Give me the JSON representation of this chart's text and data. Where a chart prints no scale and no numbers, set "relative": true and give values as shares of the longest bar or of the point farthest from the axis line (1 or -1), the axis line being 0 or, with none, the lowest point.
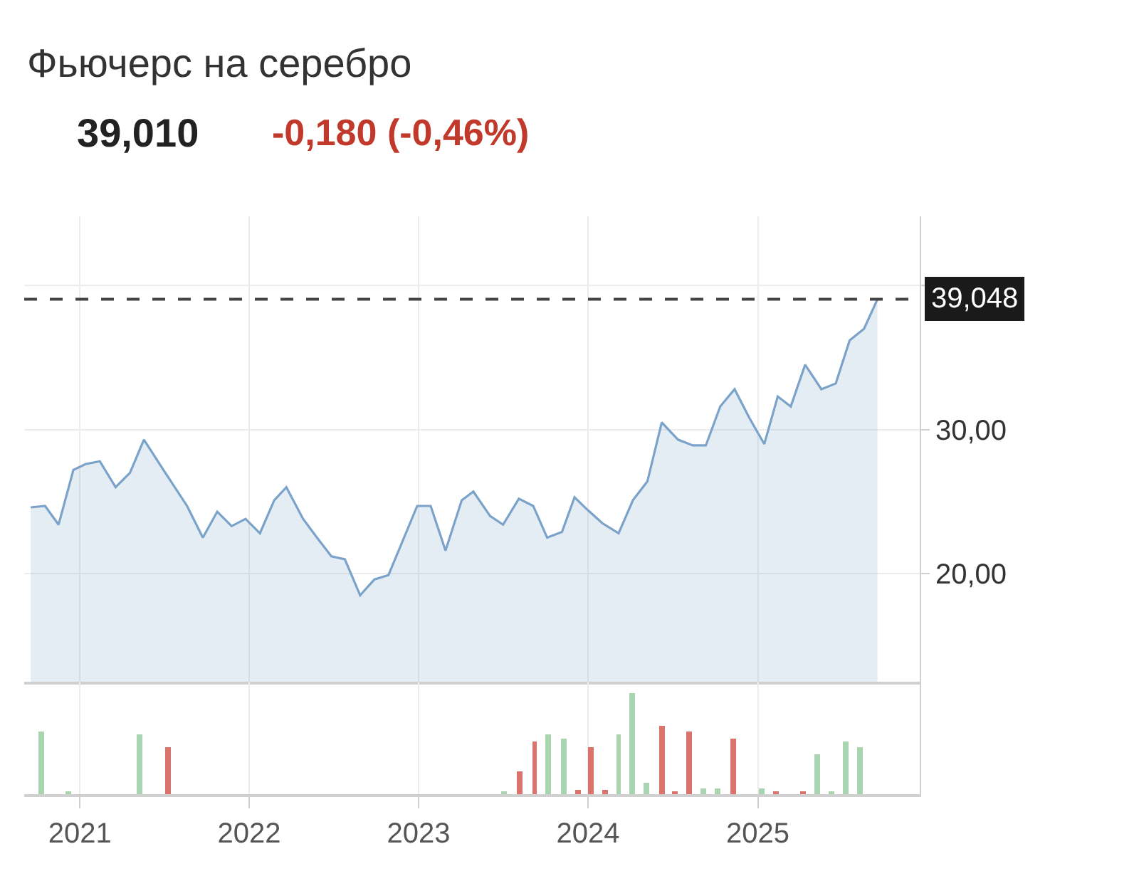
{
  "chart_data": [
    {
      "type": "area",
      "title": "Фьючерс на серебро",
      "subtitle": "39,010",
      "annotations": [
        "-0,180 (-0,46%)"
      ],
      "x": [
        "2020-09-17",
        "2020-10-18",
        "2020-11-16",
        "2020-12-18",
        "2021-01-13",
        "2021-02-13",
        "2021-03-19",
        "2021-04-19",
        "2021-05-19",
        "2021-07-04",
        "2021-08-20",
        "2021-09-23",
        "2021-10-24",
        "2021-11-24",
        "2021-12-24",
        "2022-01-24",
        "2022-02-24",
        "2022-03-22",
        "2022-04-27",
        "2022-05-27",
        "2022-06-27",
        "2022-07-26",
        "2022-08-28",
        "2022-09-28",
        "2022-10-28",
        "2022-12-29",
        "2023-01-27",
        "2023-02-28",
        "2023-04-04",
        "2023-04-29",
        "2023-06-04",
        "2023-07-02",
        "2023-08-05",
        "2023-09-05",
        "2023-10-05",
        "2023-11-06",
        "2023-12-03",
        "2024-01-01",
        "2024-02-01",
        "2024-03-07",
        "2024-04-07",
        "2024-05-08",
        "2024-06-08",
        "2024-07-13",
        "2024-08-14",
        "2024-09-11",
        "2024-10-12",
        "2024-11-12",
        "2024-12-14",
        "2025-01-15",
        "2025-02-13",
        "2025-03-13",
        "2025-04-13",
        "2025-05-18",
        "2025-06-18",
        "2025-07-18",
        "2025-08-18",
        "2025-09-16"
      ],
      "series": [
        {
          "color": "#7ba3c9",
          "values": [
            24.6,
            24.7,
            23.4,
            27.2,
            27.6,
            27.8,
            26.0,
            27.0,
            29.3,
            27.0,
            24.7,
            22.5,
            24.3,
            23.3,
            23.8,
            22.8,
            25.1,
            26.0,
            23.8,
            22.5,
            21.2,
            21.0,
            18.5,
            19.6,
            19.9,
            24.7,
            24.7,
            21.6,
            25.1,
            25.7,
            24.0,
            23.4,
            25.2,
            24.7,
            22.5,
            22.9,
            25.3,
            24.4,
            23.5,
            22.8,
            25.1,
            26.4,
            30.5,
            29.3,
            28.9,
            28.9,
            31.6,
            32.8,
            30.8,
            29.0,
            32.3,
            31.6,
            34.5,
            32.8,
            33.2,
            36.2,
            37.0,
            39.048
          ]
        }
      ],
      "xlim": [
        "2020-09-03",
        "2025-12-16"
      ],
      "ylim": [
        12.5,
        44.8
      ],
      "yticks": [
        {
          "value": 20,
          "label": "20,00"
        },
        {
          "value": 30,
          "label": "30,00"
        },
        {
          "value": 40,
          "label": null
        }
      ],
      "ref_lines": [
        {
          "axis": "y",
          "value": 39.048,
          "label": "39,048",
          "color": "#444444",
          "line_style": "dashed"
        }
      ],
      "grid": true,
      "marker": "none",
      "line_style": "solid",
      "tick_labels": "y"
    },
    {
      "type": "bar",
      "relative": true,
      "x": [
        "2020-10-09",
        "2020-12-08",
        "2021-05-09",
        "2021-07-11",
        "2023-07-05",
        "2023-08-07",
        "2023-09-08",
        "2023-10-07",
        "2023-11-09",
        "2023-12-10",
        "2024-01-07",
        "2024-02-07",
        "2024-03-07",
        "2024-04-06",
        "2024-05-06",
        "2024-06-08",
        "2024-07-05",
        "2024-08-05",
        "2024-09-06",
        "2024-10-06",
        "2024-11-09",
        "2025-01-08",
        "2025-02-09",
        "2025-04-08",
        "2025-05-09",
        "2025-06-08",
        "2025-07-09",
        "2025-08-09"
      ],
      "values": [
        0.63,
        0.035,
        0.59,
        0.47,
        0.035,
        0.23,
        0.52,
        0.59,
        0.55,
        0.04,
        0.47,
        0.04,
        0.59,
        1,
        0.11,
        0.68,
        0.035,
        0.63,
        0.06,
        0.06,
        0.55,
        0.06,
        0.035,
        0.035,
        0.39,
        0.035,
        0.52,
        0.47
      ],
      "colors": [
        "#a8d5b0",
        "#a8d5b0",
        "#a8d5b0",
        "#d9736b",
        "#a8d5b0",
        "#d9736b",
        "#d9736b",
        "#a8d5b0",
        "#a8d5b0",
        "#d9736b",
        "#d9736b",
        "#d9736b",
        "#a8d5b0",
        "#a8d5b0",
        "#a8d5b0",
        "#d9736b",
        "#d9736b",
        "#d9736b",
        "#a8d5b0",
        "#a8d5b0",
        "#d9736b",
        "#a8d5b0",
        "#d9736b",
        "#d9736b",
        "#a8d5b0",
        "#a8d5b0",
        "#a8d5b0",
        "#a8d5b0"
      ],
      "xlim": [
        "2020-09-03",
        "2025-12-16"
      ],
      "xticks": [
        {
          "value": "2021-01-01",
          "label": "2021"
        },
        {
          "value": "2022-01-01",
          "label": "2022"
        },
        {
          "value": "2023-01-01",
          "label": "2023"
        },
        {
          "value": "2024-01-01",
          "label": "2024"
        },
        {
          "value": "2025-01-01",
          "label": "2025"
        }
      ],
      "grid": "x",
      "tick_labels": "x"
    }
  ]
}
